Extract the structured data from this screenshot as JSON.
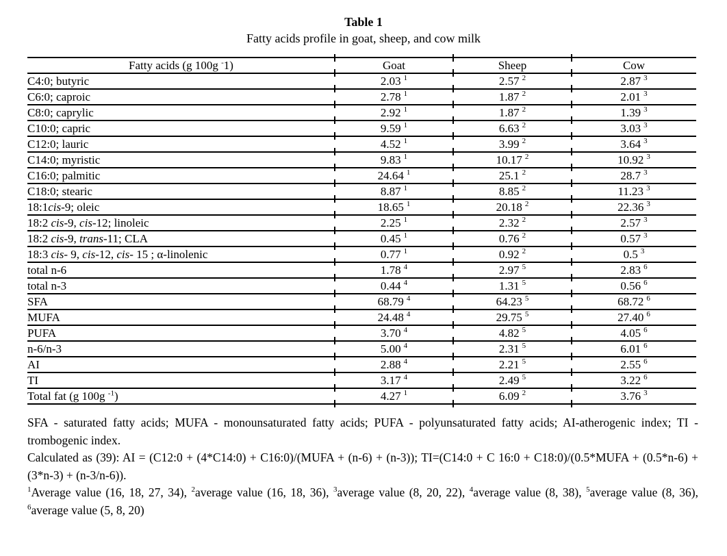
{
  "page": {
    "title": "Table 1",
    "subtitle": "Fatty acids profile in goat, sheep, and cow milk"
  },
  "table": {
    "header": {
      "fatty_acids": [
        {
          "t": "Fatty acids (g 100g "
        },
        {
          "t": "-",
          "sup": true
        },
        {
          "t": "1)"
        }
      ],
      "goat": "Goat",
      "sheep": "Sheep",
      "cow": "Cow"
    },
    "rows": [
      {
        "label": [
          {
            "t": "C4:0; butyric"
          }
        ],
        "goat": {
          "v": "2.03",
          "s": "1"
        },
        "sheep": {
          "v": "2.57",
          "s": "2"
        },
        "cow": {
          "v": "2.87",
          "s": "3"
        }
      },
      {
        "label": [
          {
            "t": "C6:0; caproic"
          }
        ],
        "goat": {
          "v": "2.78",
          "s": "1"
        },
        "sheep": {
          "v": "1.87",
          "s": "2"
        },
        "cow": {
          "v": "2.01",
          "s": "3"
        }
      },
      {
        "label": [
          {
            "t": "C8:0; caprylic"
          }
        ],
        "goat": {
          "v": "2.92",
          "s": "1"
        },
        "sheep": {
          "v": "1.87",
          "s": "2"
        },
        "cow": {
          "v": "1.39",
          "s": "3"
        }
      },
      {
        "label": [
          {
            "t": "C10:0; capric"
          }
        ],
        "goat": {
          "v": "9.59",
          "s": "1"
        },
        "sheep": {
          "v": "6.63",
          "s": "2"
        },
        "cow": {
          "v": "3.03",
          "s": "3"
        }
      },
      {
        "label": [
          {
            "t": "C12:0; lauric"
          }
        ],
        "goat": {
          "v": "4.52",
          "s": "1"
        },
        "sheep": {
          "v": "3.99",
          "s": "2"
        },
        "cow": {
          "v": "3.64",
          "s": "3"
        }
      },
      {
        "label": [
          {
            "t": "C14:0; myristic"
          }
        ],
        "goat": {
          "v": "9.83",
          "s": "1"
        },
        "sheep": {
          "v": "10.17",
          "s": "2"
        },
        "cow": {
          "v": "10.92",
          "s": "3"
        }
      },
      {
        "label": [
          {
            "t": "C16:0; palmitic"
          }
        ],
        "goat": {
          "v": "24.64",
          "s": "1"
        },
        "sheep": {
          "v": "25.1",
          "s": "2"
        },
        "cow": {
          "v": "28.7",
          "s": "3"
        }
      },
      {
        "label": [
          {
            "t": "C18:0; stearic"
          }
        ],
        "goat": {
          "v": "8.87",
          "s": "1"
        },
        "sheep": {
          "v": "8.85",
          "s": "2"
        },
        "cow": {
          "v": "11.23",
          "s": "3"
        }
      },
      {
        "label": [
          {
            "t": "18:1"
          },
          {
            "t": "cis",
            "i": true
          },
          {
            "t": "-9; oleic"
          }
        ],
        "goat": {
          "v": "18.65",
          "s": "1"
        },
        "sheep": {
          "v": "20.18",
          "s": "2"
        },
        "cow": {
          "v": "22.36",
          "s": "3"
        }
      },
      {
        "label": [
          {
            "t": "18:2 "
          },
          {
            "t": "cis",
            "i": true
          },
          {
            "t": "-9, "
          },
          {
            "t": "cis",
            "i": true
          },
          {
            "t": "-12; linoleic"
          }
        ],
        "goat": {
          "v": "2.25",
          "s": "1"
        },
        "sheep": {
          "v": "2.32",
          "s": "2"
        },
        "cow": {
          "v": "2.57",
          "s": "3"
        }
      },
      {
        "label": [
          {
            "t": "18:2 "
          },
          {
            "t": "cis",
            "i": true
          },
          {
            "t": "-9, "
          },
          {
            "t": "trans",
            "i": true
          },
          {
            "t": "-11; CLA"
          }
        ],
        "goat": {
          "v": "0.45",
          "s": "1"
        },
        "sheep": {
          "v": "0.76",
          "s": "2"
        },
        "cow": {
          "v": "0.57",
          "s": "3"
        }
      },
      {
        "label": [
          {
            "t": "18:3 "
          },
          {
            "t": "cis",
            "i": true
          },
          {
            "t": "- 9, "
          },
          {
            "t": "cis",
            "i": true
          },
          {
            "t": "-12, "
          },
          {
            "t": "cis",
            "i": true
          },
          {
            "t": "- 15 ; α-linolenic"
          }
        ],
        "goat": {
          "v": "0.77",
          "s": "1"
        },
        "sheep": {
          "v": "0.92",
          "s": "2"
        },
        "cow": {
          "v": "0.5",
          "s": "3"
        }
      },
      {
        "label": [
          {
            "t": "total n-6"
          }
        ],
        "goat": {
          "v": "1.78",
          "s": "4"
        },
        "sheep": {
          "v": "2.97",
          "s": "5"
        },
        "cow": {
          "v": "2.83",
          "s": "6"
        }
      },
      {
        "label": [
          {
            "t": "total n-3"
          }
        ],
        "goat": {
          "v": "0.44",
          "s": "4"
        },
        "sheep": {
          "v": "1.31",
          "s": "5"
        },
        "cow": {
          "v": "0.56",
          "s": "6"
        }
      },
      {
        "label": [
          {
            "t": "SFA"
          }
        ],
        "goat": {
          "v": "68.79",
          "s": "4"
        },
        "sheep": {
          "v": "64.23",
          "s": "5"
        },
        "cow": {
          "v": "68.72",
          "s": "6"
        }
      },
      {
        "label": [
          {
            "t": "MUFA"
          }
        ],
        "goat": {
          "v": "24.48",
          "s": "4"
        },
        "sheep": {
          "v": "29.75",
          "s": "5"
        },
        "cow": {
          "v": "27.40",
          "s": "6"
        }
      },
      {
        "label": [
          {
            "t": "PUFA"
          }
        ],
        "goat": {
          "v": "3.70",
          "s": "4"
        },
        "sheep": {
          "v": "4.82",
          "s": "5"
        },
        "cow": {
          "v": "4.05",
          "s": "6"
        }
      },
      {
        "label": [
          {
            "t": "n-6/n-3"
          }
        ],
        "goat": {
          "v": "5.00",
          "s": "4"
        },
        "sheep": {
          "v": "2.31",
          "s": "5"
        },
        "cow": {
          "v": "6.01",
          "s": "6"
        }
      },
      {
        "label": [
          {
            "t": "AI"
          }
        ],
        "goat": {
          "v": "2.88",
          "s": "4"
        },
        "sheep": {
          "v": "2.21",
          "s": "5"
        },
        "cow": {
          "v": "2.55",
          "s": "6"
        }
      },
      {
        "label": [
          {
            "t": "TI"
          }
        ],
        "goat": {
          "v": "3.17",
          "s": "4"
        },
        "sheep": {
          "v": "2.49",
          "s": "5"
        },
        "cow": {
          "v": "3.22",
          "s": "6"
        }
      },
      {
        "label": [
          {
            "t": "Total fat (g 100g "
          },
          {
            "t": "-1",
            "sup": true
          },
          {
            "t": ")"
          }
        ],
        "goat": {
          "v": "4.27",
          "s": "1"
        },
        "sheep": {
          "v": "6.09",
          "s": "2"
        },
        "cow": {
          "v": "3.76",
          "s": "3"
        }
      }
    ]
  },
  "footnotes": [
    [
      {
        "t": "SFA - saturated fatty acids; MUFA - monounsaturated fatty acids; PUFA - polyunsaturated fatty acids; AI-atherogenic index; TI - trombogenic index."
      }
    ],
    [
      {
        "t": "Calculated as (39): AI = (C12:0 + (4*C14:0) + C16:0)/(MUFA + (n-6) + (n-3)); TI=(C14:0 + C 16:0 + C18:0)/(0.5*MUFA + (0.5*n-6) + (3*n-3) + (n-3/n-6))."
      }
    ],
    [
      {
        "t": "1",
        "sup": true
      },
      {
        "t": "Average value (16, 18, 27, 34), "
      },
      {
        "t": "2",
        "sup": true
      },
      {
        "t": "average value (16, 18, 36), "
      },
      {
        "t": "3",
        "sup": true
      },
      {
        "t": "average value (8, 20, 22), "
      },
      {
        "t": "4",
        "sup": true
      },
      {
        "t": "average value (8, 38), "
      },
      {
        "t": "5",
        "sup": true
      },
      {
        "t": "average value (8, 36), "
      },
      {
        "t": "6",
        "sup": true
      },
      {
        "t": "average value (5, 8, 20)"
      }
    ]
  ]
}
